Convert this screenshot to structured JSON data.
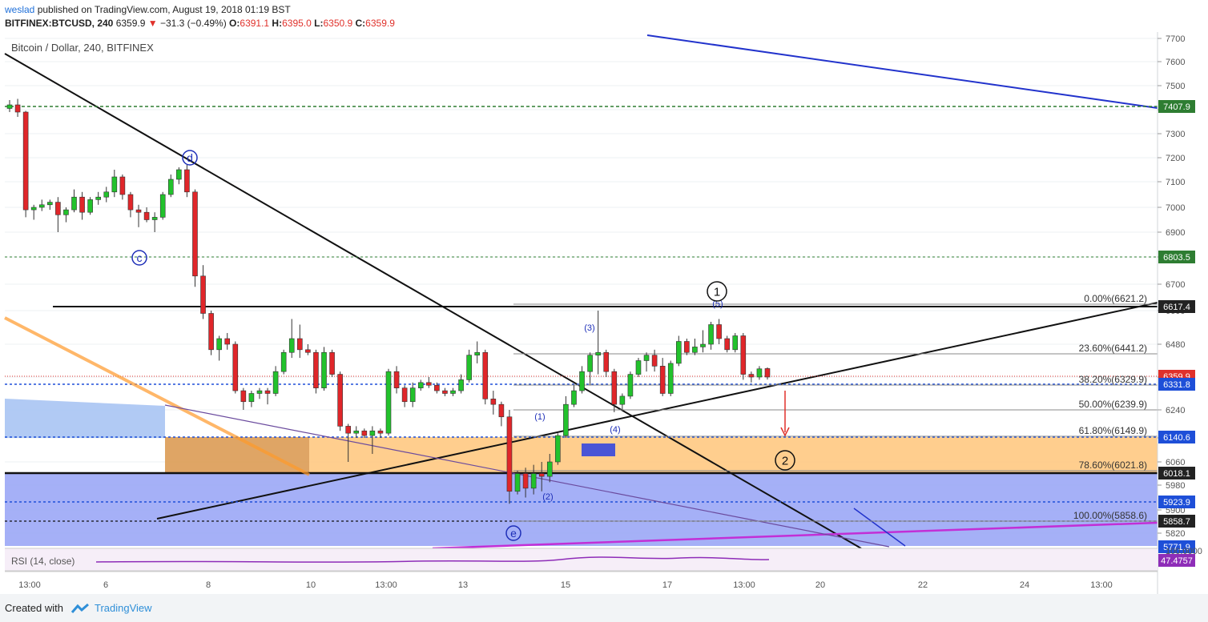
{
  "header": {
    "author": "weslad",
    "published": "published on TradingView.com, August 19, 2018 01:19 BST",
    "symbol": "BITFINEX:BTCUSD, 240",
    "last": "6359.9",
    "change": "−31.3 (−0.49%)",
    "open": "6391.1",
    "high": "6395.0",
    "low": "6350.9",
    "close": "6359.9"
  },
  "footer": {
    "created_with": "Created with",
    "brand": "TradingView"
  },
  "chart_data": {
    "type": "candlestick",
    "title": "Bitcoin / Dollar, 240, BITFINEX",
    "price_axis_ticks": [
      7700,
      7600,
      7500,
      7400,
      7300,
      7200,
      7100,
      7000,
      6900,
      6800,
      6700,
      6600,
      6480,
      6360,
      6240,
      6120,
      6060,
      5980,
      5900,
      5820
    ],
    "time_axis_ticks": [
      "13:00",
      "6",
      "8",
      "10",
      "13:00",
      "13",
      "15",
      "17",
      "13:00",
      "20",
      "22",
      "24",
      "13:00"
    ],
    "price_badges": [
      {
        "value": "7407.9",
        "color": "#2e7d32"
      },
      {
        "value": "6803.5",
        "color": "#2e7d32"
      },
      {
        "value": "6617.4",
        "color": "#222222"
      },
      {
        "value": "6359.9",
        "color": "#e0312b"
      },
      {
        "value": "6331.8",
        "color": "#1e4fd8"
      },
      {
        "value": "6140.6",
        "color": "#1e4fd8"
      },
      {
        "value": "6018.1",
        "color": "#222222"
      },
      {
        "value": "5923.9",
        "color": "#1e4fd8"
      },
      {
        "value": "5858.7",
        "color": "#222222"
      },
      {
        "value": "5771.9",
        "color": "#1e4fd8"
      }
    ],
    "fib_levels": [
      {
        "label": "0.00%(6621.2)",
        "price": 6621.2
      },
      {
        "label": "23.60%(6441.2)",
        "price": 6441.2
      },
      {
        "label": "38.20%(6329.9)",
        "price": 6329.9
      },
      {
        "label": "50.00%(6239.9)",
        "price": 6239.9
      },
      {
        "label": "61.80%(6149.9)",
        "price": 6149.9
      },
      {
        "label": "78.60%(6021.8)",
        "price": 6021.8
      },
      {
        "label": "100.00%(5858.6)",
        "price": 5858.6
      }
    ],
    "wave_labels": [
      "d",
      "c",
      "e",
      "(1)",
      "(2)",
      "(3)",
      "(4)",
      "(5)",
      "1",
      "2"
    ],
    "candles": [
      [
        7405,
        7440,
        7390,
        7420
      ],
      [
        7420,
        7445,
        7370,
        7390
      ],
      [
        7390,
        7395,
        6960,
        6990
      ],
      [
        6990,
        7010,
        6950,
        7000
      ],
      [
        7000,
        7030,
        6985,
        7010
      ],
      [
        7010,
        7030,
        6990,
        7020
      ],
      [
        7020,
        7040,
        6900,
        6970
      ],
      [
        6970,
        7000,
        6940,
        6990
      ],
      [
        6990,
        7070,
        6980,
        7040
      ],
      [
        7040,
        7060,
        6950,
        6980
      ],
      [
        6980,
        7040,
        6970,
        7030
      ],
      [
        7030,
        7060,
        7010,
        7040
      ],
      [
        7040,
        7080,
        7020,
        7060
      ],
      [
        7060,
        7150,
        7040,
        7120
      ],
      [
        7120,
        7130,
        7030,
        7050
      ],
      [
        7050,
        7060,
        6960,
        6990
      ],
      [
        6990,
        7010,
        6920,
        6980
      ],
      [
        6980,
        7000,
        6940,
        6950
      ],
      [
        6950,
        6980,
        6900,
        6960
      ],
      [
        6960,
        7060,
        6950,
        7050
      ],
      [
        7050,
        7130,
        7040,
        7110
      ],
      [
        7110,
        7160,
        7090,
        7150
      ],
      [
        7150,
        7170,
        7040,
        7060
      ],
      [
        7060,
        7070,
        6690,
        6730
      ],
      [
        6730,
        6770,
        6570,
        6590
      ],
      [
        6590,
        6600,
        6440,
        6460
      ],
      [
        6460,
        6510,
        6420,
        6500
      ],
      [
        6500,
        6520,
        6460,
        6480
      ],
      [
        6480,
        6490,
        6300,
        6310
      ],
      [
        6310,
        6320,
        6240,
        6270
      ],
      [
        6270,
        6310,
        6250,
        6300
      ],
      [
        6300,
        6320,
        6280,
        6310
      ],
      [
        6310,
        6320,
        6260,
        6300
      ],
      [
        6300,
        6400,
        6290,
        6380
      ],
      [
        6380,
        6460,
        6370,
        6450
      ],
      [
        6450,
        6570,
        6430,
        6500
      ],
      [
        6500,
        6550,
        6430,
        6460
      ],
      [
        6460,
        6480,
        6440,
        6450
      ],
      [
        6450,
        6460,
        6300,
        6320
      ],
      [
        6320,
        6470,
        6310,
        6450
      ],
      [
        6450,
        6460,
        6360,
        6370
      ],
      [
        6370,
        6380,
        6150,
        6170
      ],
      [
        6170,
        6180,
        6060,
        6140
      ],
      [
        6140,
        6170,
        6120,
        6150
      ],
      [
        6150,
        6160,
        6120,
        6130
      ],
      [
        6130,
        6170,
        6080,
        6150
      ],
      [
        6150,
        6160,
        6120,
        6140
      ],
      [
        6140,
        6390,
        6130,
        6380
      ],
      [
        6380,
        6400,
        6300,
        6320
      ],
      [
        6320,
        6330,
        6250,
        6270
      ],
      [
        6270,
        6340,
        6250,
        6320
      ],
      [
        6320,
        6350,
        6310,
        6340
      ],
      [
        6340,
        6360,
        6320,
        6330
      ],
      [
        6330,
        6340,
        6300,
        6310
      ],
      [
        6310,
        6320,
        6290,
        6300
      ],
      [
        6300,
        6320,
        6290,
        6310
      ],
      [
        6310,
        6370,
        6300,
        6350
      ],
      [
        6350,
        6460,
        6340,
        6440
      ],
      [
        6440,
        6490,
        6410,
        6450
      ],
      [
        6450,
        6460,
        6260,
        6280
      ],
      [
        6280,
        6310,
        6220,
        6260
      ],
      [
        6260,
        6270,
        6170,
        6210
      ],
      [
        6210,
        6240,
        5920,
        5960
      ],
      [
        5960,
        6030,
        5950,
        6020
      ],
      [
        6020,
        6040,
        5940,
        5970
      ],
      [
        5970,
        6050,
        5950,
        6020
      ],
      [
        6020,
        6060,
        5960,
        6010
      ],
      [
        6010,
        6080,
        5990,
        6060
      ],
      [
        6060,
        6140,
        6050,
        6130
      ],
      [
        6130,
        6290,
        6120,
        6260
      ],
      [
        6260,
        6330,
        6250,
        6310
      ],
      [
        6310,
        6400,
        6300,
        6380
      ],
      [
        6380,
        6450,
        6330,
        6440
      ],
      [
        6440,
        6600,
        6370,
        6450
      ],
      [
        6450,
        6460,
        6360,
        6380
      ],
      [
        6380,
        6390,
        6230,
        6260
      ],
      [
        6260,
        6300,
        6240,
        6290
      ],
      [
        6290,
        6380,
        6280,
        6370
      ],
      [
        6370,
        6430,
        6360,
        6420
      ],
      [
        6420,
        6450,
        6380,
        6440
      ],
      [
        6440,
        6460,
        6380,
        6400
      ],
      [
        6400,
        6430,
        6290,
        6300
      ],
      [
        6300,
        6420,
        6290,
        6410
      ],
      [
        6410,
        6510,
        6400,
        6490
      ],
      [
        6490,
        6500,
        6440,
        6450
      ],
      [
        6450,
        6500,
        6440,
        6470
      ],
      [
        6470,
        6530,
        6450,
        6480
      ],
      [
        6480,
        6560,
        6460,
        6550
      ],
      [
        6550,
        6570,
        6480,
        6500
      ],
      [
        6500,
        6510,
        6450,
        6460
      ],
      [
        6460,
        6520,
        6450,
        6510
      ],
      [
        6510,
        6520,
        6350,
        6370
      ],
      [
        6370,
        6380,
        6340,
        6360
      ],
      [
        6360,
        6400,
        6350,
        6390
      ],
      [
        6391,
        6395,
        6351,
        6360
      ]
    ],
    "rsi": {
      "label": "RSI (14, close)",
      "value": "47.4757",
      "axis": "100.0000"
    }
  }
}
